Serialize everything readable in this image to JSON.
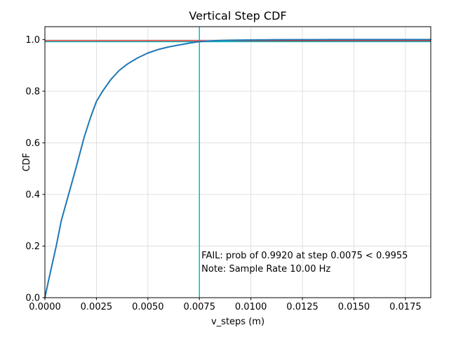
{
  "chart_data": {
    "type": "line",
    "title": "Vertical Step CDF",
    "xlabel": "v_steps (m)",
    "ylabel": "CDF",
    "xlim": [
      0,
      0.01873
    ],
    "ylim": [
      0,
      1.05
    ],
    "grid": true,
    "legend_position": "none",
    "x_ticks": {
      "values": [
        0,
        0.0025,
        0.005,
        0.0075,
        0.01,
        0.0125,
        0.015,
        0.0175
      ],
      "labels": [
        "0.0000",
        "0.0025",
        "0.0050",
        "0.0075",
        "0.0100",
        "0.0125",
        "0.0150",
        "0.0175"
      ]
    },
    "y_ticks": {
      "values": [
        0,
        0.2,
        0.4,
        0.6,
        0.8,
        1.0
      ],
      "labels": [
        "0.0",
        "0.2",
        "0.4",
        "0.6",
        "0.8",
        "1.0"
      ]
    },
    "series": [
      {
        "name": "vertical-step-cdf",
        "color": "#1f77b4",
        "width": 2,
        "points": [
          [
            0,
            0
          ],
          [
            0.0002,
            0.075
          ],
          [
            0.00055,
            0.2
          ],
          [
            0.0008,
            0.3
          ],
          [
            0.00115,
            0.4
          ],
          [
            0.0015,
            0.5
          ],
          [
            0.0019,
            0.62
          ],
          [
            0.0022,
            0.695
          ],
          [
            0.0025,
            0.76
          ],
          [
            0.0028,
            0.8
          ],
          [
            0.0032,
            0.845
          ],
          [
            0.0036,
            0.88
          ],
          [
            0.004,
            0.905
          ],
          [
            0.0045,
            0.929
          ],
          [
            0.005,
            0.948
          ],
          [
            0.0055,
            0.9615
          ],
          [
            0.006,
            0.9715
          ],
          [
            0.0065,
            0.979
          ],
          [
            0.007,
            0.986
          ],
          [
            0.0075,
            0.992
          ],
          [
            0.008,
            0.9945
          ],
          [
            0.0085,
            0.9962
          ],
          [
            0.009,
            0.9972
          ],
          [
            0.0095,
            0.998
          ],
          [
            0.01,
            0.9985
          ],
          [
            0.011,
            0.9992
          ],
          [
            0.012,
            0.9996
          ],
          [
            0.013,
            0.9998
          ],
          [
            0.014,
            0.9999
          ],
          [
            0.016,
            1.0
          ],
          [
            0.01873,
            1.0
          ]
        ]
      }
    ],
    "reference_lines": [
      {
        "name": "threshold-hline",
        "orientation": "horizontal",
        "value": 0.9955,
        "color": "#ff0000",
        "width": 1.2
      },
      {
        "name": "prob-hline",
        "orientation": "horizontal",
        "value": 0.992,
        "color": "#00bfbf",
        "width": 1.5
      },
      {
        "name": "step-vline",
        "orientation": "vertical",
        "value": 0.0075,
        "color": "#00bfbf",
        "width": 1.5
      }
    ],
    "annotations": [
      {
        "name": "fail-annotation",
        "text": "FAIL: prob of 0.9920 at step 0.0075 < 0.9955",
        "color": "#ff0000",
        "x": 0.0076,
        "y": 0.152
      },
      {
        "name": "note-annotation",
        "text": "Note: Sample Rate 10.00 Hz",
        "color": "#000000",
        "x": 0.0076,
        "y": 0.1
      }
    ],
    "style": {
      "grid_color": "#dcdcdc",
      "spine_color": "#000000",
      "background": "#ffffff"
    }
  }
}
